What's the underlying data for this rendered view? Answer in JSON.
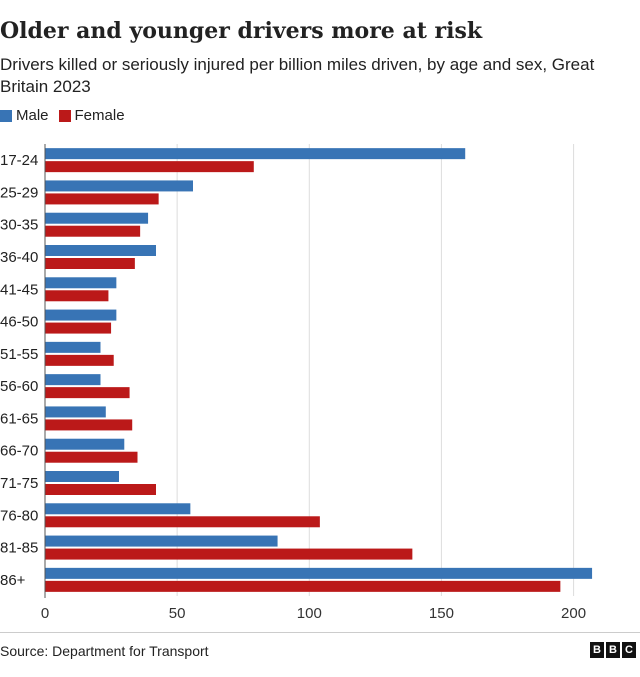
{
  "title": "Older and younger drivers more at risk",
  "subtitle": "Drivers killed or seriously injured per billion miles driven, by age and sex, Great Britain 2023",
  "source": "Source: Department for Transport",
  "logo": [
    "B",
    "B",
    "C"
  ],
  "colors": {
    "male": "#3874b5",
    "female": "#bb1919",
    "grid": "#dddddd",
    "axis": "#999999"
  },
  "chart_data": {
    "type": "bar",
    "orientation": "horizontal",
    "categories": [
      "17-24",
      "25-29",
      "30-35",
      "36-40",
      "41-45",
      "46-50",
      "51-55",
      "56-60",
      "61-65",
      "66-70",
      "71-75",
      "76-80",
      "81-85",
      "86+"
    ],
    "series": [
      {
        "name": "Male",
        "color": "#3874b5",
        "values": [
          159,
          56,
          39,
          42,
          27,
          27,
          21,
          21,
          23,
          30,
          28,
          55,
          88,
          207
        ]
      },
      {
        "name": "Female",
        "color": "#bb1919",
        "values": [
          79,
          43,
          36,
          34,
          24,
          25,
          26,
          32,
          33,
          35,
          42,
          104,
          139,
          195
        ]
      }
    ],
    "xlim": [
      0,
      210
    ],
    "xticks": [
      0,
      50,
      100,
      150,
      200
    ],
    "legend": "top-left",
    "grid": true
  }
}
